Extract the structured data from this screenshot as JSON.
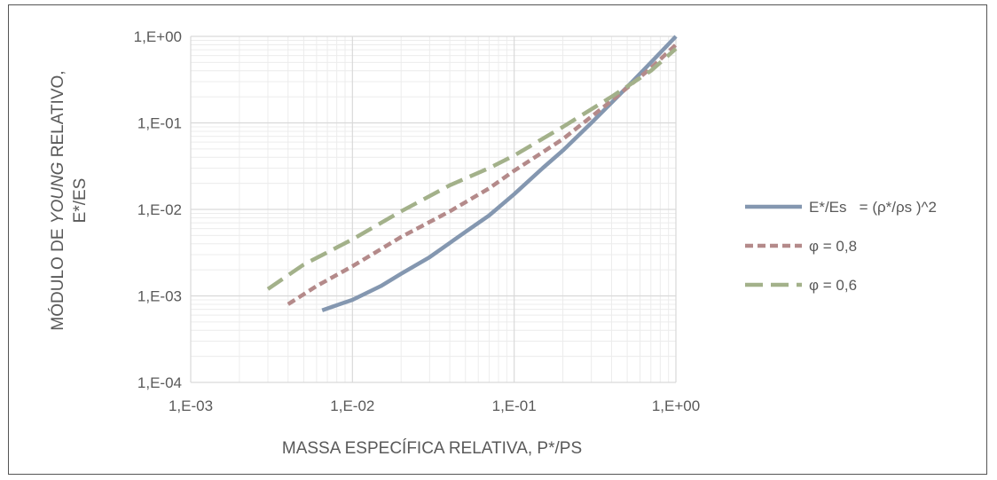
{
  "chart_data": {
    "type": "line",
    "x_scale": "log",
    "y_scale": "log",
    "xlim": [
      0.001,
      1
    ],
    "ylim": [
      0.0001,
      1
    ],
    "x_ticks": [
      0.001,
      0.01,
      0.1,
      1
    ],
    "y_ticks": [
      0.0001,
      0.001,
      0.01,
      0.1,
      1
    ],
    "x_tick_labels": [
      "1,E-03",
      "1,E-02",
      "1,E-01",
      "1,E+00"
    ],
    "y_tick_labels": [
      "1,E-04",
      "1,E-03",
      "1,E-02",
      "1,E-01",
      "1,E+00"
    ],
    "xlabel": "MASSA ESPECÍFICA RELATIVA, Ρ*/ΡS",
    "ylabel_line1_prefix": "MÓDULO DE ",
    "ylabel_line1_italic": "YOUNG",
    "ylabel_line1_suffix": " RELATIVO,",
    "ylabel_line2": "E*/ES",
    "grid": true,
    "legend_position": "right",
    "series": [
      {
        "name": "E*/Es   = (ρ*/ρs )^2",
        "color": "#8497b0",
        "dash": "solid",
        "x": [
          0.0065,
          0.008,
          0.01,
          0.015,
          0.02,
          0.03,
          0.05,
          0.07,
          0.1,
          0.15,
          0.2,
          0.3,
          0.5,
          0.7,
          1.0
        ],
        "y": [
          0.00068,
          0.00078,
          0.0009,
          0.0013,
          0.0018,
          0.0028,
          0.0055,
          0.0085,
          0.015,
          0.03,
          0.048,
          0.1,
          0.26,
          0.5,
          1.0
        ]
      },
      {
        "name": "φ = 0,8",
        "color": "#b48a8a",
        "dash": "short",
        "x": [
          0.004,
          0.006,
          0.01,
          0.02,
          0.04,
          0.07,
          0.1,
          0.2,
          0.4,
          0.7,
          1.0
        ],
        "y": [
          0.0008,
          0.0013,
          0.0022,
          0.0048,
          0.0095,
          0.0175,
          0.028,
          0.065,
          0.18,
          0.43,
          0.8
        ]
      },
      {
        "name": "φ = 0,6",
        "color": "#a3b18a",
        "dash": "long",
        "x": [
          0.003,
          0.005,
          0.01,
          0.02,
          0.04,
          0.07,
          0.1,
          0.2,
          0.4,
          0.7,
          1.0
        ],
        "y": [
          0.0012,
          0.0023,
          0.0045,
          0.0095,
          0.019,
          0.03,
          0.042,
          0.09,
          0.2,
          0.4,
          0.72
        ]
      }
    ]
  }
}
